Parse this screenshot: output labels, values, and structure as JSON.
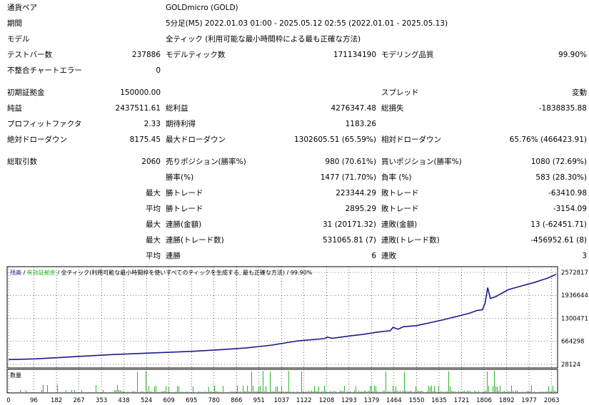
{
  "report": {
    "symbol_label": "通貨ペア",
    "symbol_value": "GOLDmicro (GOLD)",
    "period_label": "期間",
    "period_value": "5分足(M5) 2022.01.03 01:00 - 2025.05.12 02:55 (2022.01.01 - 2025.05.13)",
    "model_label": "モデル",
    "model_value": "全ティック (利用可能な最小時間枠による最も正確な方法)",
    "bars_label": "テストバー数",
    "bars_value": "237886",
    "ticks_label": "モデルティック数",
    "ticks_value": "171134190",
    "quality_label": "モデリング品質",
    "quality_value": "99.90%",
    "errors_label": "不整合チャートエラー",
    "errors_value": "0",
    "deposit_label": "初期証拠金",
    "deposit_value": "150000.00",
    "spread_label": "スプレッド",
    "spread_value": "変動",
    "net_label": "純益",
    "net_value": "2437511.61",
    "gross_profit_label": "総利益",
    "gross_profit_value": "4276347.48",
    "gross_loss_label": "総損失",
    "gross_loss_value": "-1838835.88",
    "pf_label": "プロフィットファクタ",
    "pf_value": "2.33",
    "expected_label": "期待利得",
    "expected_value": "1183.26",
    "abs_dd_label": "絶対ドローダウン",
    "abs_dd_value": "8175.45",
    "max_dd_label": "最大ドローダウン",
    "max_dd_value": "1302605.51 (65.59%)",
    "rel_dd_label": "相対ドローダウン",
    "rel_dd_value": "65.76% (466423.91)",
    "total_trades_label": "総取引数",
    "total_trades_value": "2060",
    "short_label": "売りポジション(勝率%)",
    "short_value": "980 (70.61%)",
    "long_label": "買いポジション(勝率%)",
    "long_value": "1080 (72.69%)",
    "win_rate_label": "勝率(%)",
    "win_rate_value": "1477 (71.70%)",
    "loss_rate_label": "負率 (%)",
    "loss_rate_value": "583 (28.30%)",
    "max_label": "最大",
    "avg_label": "平均",
    "max_win_label": "勝トレード",
    "max_win_value": "223344.29",
    "max_loss_label": "敗トレード",
    "max_loss_value": "-63410.98",
    "avg_win_label": "勝トレード",
    "avg_win_value": "2895.29",
    "avg_loss_label": "敗トレード",
    "avg_loss_value": "-3154.09",
    "max_consec_win_label": "連勝(金額)",
    "max_consec_win_value": "31 (20171.32)",
    "max_consec_loss_label": "連敗(金額)",
    "max_consec_loss_value": "13 (-62451.71)",
    "max_consec_profit_label": "連勝(トレード数)",
    "max_consec_profit_value": "531065.81 (7)",
    "max_consec_lossamt_label": "連敗(トレード数)",
    "max_consec_lossamt_value": "-456952.61 (8)",
    "avg_consec_win_label": "連勝",
    "avg_consec_win_value": "6",
    "avg_consec_loss_label": "連敗",
    "avg_consec_loss_value": "3"
  },
  "chart": {
    "legend_balance": "残高",
    "legend_sep1": " / ",
    "legend_equity": "有効証拠金",
    "legend_sep2": " / ",
    "legend_model": "全ティック(利用可能な最小時間枠を使いすべてのティックを生成する, 最も正確な方法)",
    "legend_sep3": " / ",
    "legend_quality": "99.90%",
    "volume_label": "数量",
    "colors": {
      "balance": "#1a1a8c",
      "volume": "#2db52d",
      "border": "#000000"
    }
  },
  "chart_data": {
    "type": "line",
    "y_ticks": [
      "2572817",
      "1936644",
      "1300471",
      "664298",
      "28124"
    ],
    "y_ticks_numeric": [
      2572817,
      1936644,
      1300471,
      664298,
      28124
    ],
    "x_ticks": [
      "0",
      "96",
      "182",
      "267",
      "353",
      "438",
      "524",
      "609",
      "695",
      "780",
      "866",
      "951",
      "1037",
      "1122",
      "1208",
      "1293",
      "1379",
      "1464",
      "1550",
      "1635",
      "1721",
      "1806",
      "1892",
      "1977",
      "2063"
    ],
    "xlim": [
      0,
      2080
    ],
    "ylim": [
      28124,
      2572817
    ],
    "series": [
      {
        "x": [
          0,
          100,
          200,
          300,
          400,
          500,
          600,
          700,
          800,
          900,
          1000,
          1050,
          1100,
          1150,
          1200,
          1210,
          1230,
          1300,
          1350,
          1400,
          1450,
          1460,
          1480,
          1500,
          1550,
          1600,
          1650,
          1700,
          1750,
          1780,
          1800,
          1810,
          1820,
          1830,
          1850,
          1900,
          1950,
          2000,
          2050,
          2080
        ],
        "y": [
          160000,
          180000,
          220000,
          260000,
          300000,
          330000,
          360000,
          390000,
          430000,
          480000,
          560000,
          620000,
          680000,
          710000,
          740000,
          780000,
          750000,
          820000,
          860000,
          920000,
          960000,
          1050000,
          1000000,
          1070000,
          1100000,
          1180000,
          1260000,
          1350000,
          1440000,
          1520000,
          1540000,
          1720000,
          2150000,
          1850000,
          1900000,
          2100000,
          2200000,
          2300000,
          2420000,
          2520000
        ]
      }
    ]
  }
}
